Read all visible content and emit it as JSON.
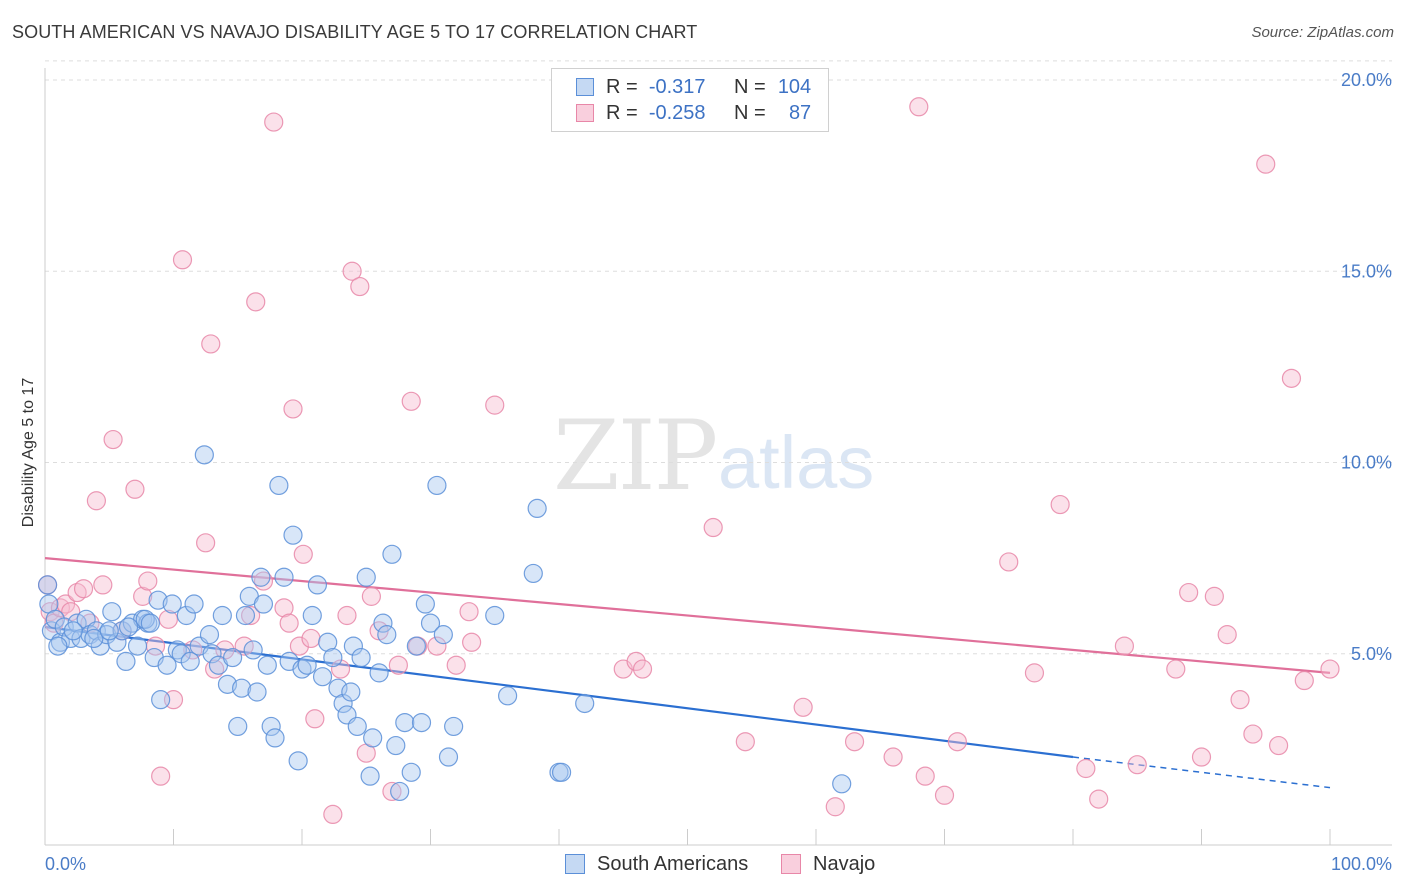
{
  "title": "SOUTH AMERICAN VS NAVAJO DISABILITY AGE 5 TO 17 CORRELATION CHART",
  "source": "Source: ZipAtlas.com",
  "watermark": {
    "zip": "ZIP",
    "atlas": "atlas"
  },
  "legend": {
    "rows": [
      {
        "r_label": "R =",
        "r_value": "-0.317",
        "n_label": "N =",
        "n_value": "104"
      },
      {
        "r_label": "R =",
        "r_value": "-0.258",
        "n_label": "N =",
        "n_value": "87"
      }
    ]
  },
  "bottom_legend": [
    "South Americans",
    "Navajo"
  ],
  "colors": {
    "south_americans_fill": "#a9c8f0",
    "south_americans_stroke": "#5b8fd8",
    "south_americans_line": "#2b6fd1",
    "navajo_fill": "#f7bcd0",
    "navajo_stroke": "#e887a8",
    "navajo_line": "#e0709a",
    "tick_label": "#4a7cc7",
    "grid": "#dddddd"
  },
  "chart_data": {
    "type": "scatter",
    "title": "SOUTH AMERICAN VS NAVAJO DISABILITY AGE 5 TO 17 CORRELATION CHART",
    "xlabel": "",
    "ylabel": "Disability Age 5 to 17",
    "xlim": [
      0,
      100
    ],
    "ylim": [
      0,
      20.5
    ],
    "x_tick_labels": [
      "0.0%",
      "100.0%"
    ],
    "y_ticks": [
      5,
      10,
      15,
      20
    ],
    "y_tick_labels": [
      "5.0%",
      "10.0%",
      "15.0%",
      "20.0%"
    ],
    "grid": true,
    "legend_position": "top-center",
    "series": [
      {
        "name": "South Americans",
        "r": -0.317,
        "n": 104,
        "trend": {
          "x0": 0,
          "y0": 5.7,
          "x1": 80,
          "y1": 2.3,
          "dashed_to_x": 100,
          "dashed_to_y": 1.5
        },
        "points": [
          [
            0.3,
            6.3
          ],
          [
            0.5,
            5.6
          ],
          [
            0.8,
            5.9
          ],
          [
            1.2,
            5.3
          ],
          [
            1.5,
            5.7
          ],
          [
            2.0,
            5.4
          ],
          [
            2.5,
            5.8
          ],
          [
            2.8,
            5.4
          ],
          [
            3.2,
            5.9
          ],
          [
            3.5,
            5.5
          ],
          [
            4.0,
            5.6
          ],
          [
            4.3,
            5.2
          ],
          [
            4.8,
            5.5
          ],
          [
            5.2,
            6.1
          ],
          [
            5.6,
            5.3
          ],
          [
            6.0,
            5.6
          ],
          [
            6.3,
            4.8
          ],
          [
            6.8,
            5.8
          ],
          [
            7.2,
            5.2
          ],
          [
            7.6,
            5.9
          ],
          [
            8.0,
            5.8
          ],
          [
            8.5,
            4.9
          ],
          [
            8.8,
            6.4
          ],
          [
            9.0,
            3.8
          ],
          [
            9.5,
            4.7
          ],
          [
            9.9,
            6.3
          ],
          [
            10.3,
            5.1
          ],
          [
            10.6,
            5.0
          ],
          [
            11.0,
            6.0
          ],
          [
            11.3,
            4.8
          ],
          [
            11.6,
            6.3
          ],
          [
            12.0,
            5.2
          ],
          [
            12.4,
            10.2
          ],
          [
            12.8,
            5.5
          ],
          [
            13.0,
            5.0
          ],
          [
            13.5,
            4.7
          ],
          [
            13.8,
            6.0
          ],
          [
            14.2,
            4.2
          ],
          [
            14.6,
            4.9
          ],
          [
            15.0,
            3.1
          ],
          [
            15.3,
            4.1
          ],
          [
            15.6,
            6.0
          ],
          [
            15.9,
            6.5
          ],
          [
            16.2,
            5.1
          ],
          [
            16.5,
            4.0
          ],
          [
            16.8,
            7.0
          ],
          [
            17.0,
            6.3
          ],
          [
            17.3,
            4.7
          ],
          [
            17.6,
            3.1
          ],
          [
            17.9,
            2.8
          ],
          [
            18.2,
            9.4
          ],
          [
            18.6,
            7.0
          ],
          [
            19.0,
            4.8
          ],
          [
            19.3,
            8.1
          ],
          [
            19.7,
            2.2
          ],
          [
            20.0,
            4.6
          ],
          [
            20.4,
            4.7
          ],
          [
            20.8,
            6.0
          ],
          [
            21.2,
            6.8
          ],
          [
            21.6,
            4.4
          ],
          [
            22.0,
            5.3
          ],
          [
            22.4,
            4.9
          ],
          [
            22.8,
            4.1
          ],
          [
            23.2,
            3.7
          ],
          [
            23.5,
            3.4
          ],
          [
            23.8,
            4.0
          ],
          [
            24.0,
            5.2
          ],
          [
            24.3,
            3.1
          ],
          [
            24.6,
            4.9
          ],
          [
            25.0,
            7.0
          ],
          [
            25.3,
            1.8
          ],
          [
            25.5,
            2.8
          ],
          [
            26.0,
            4.5
          ],
          [
            26.3,
            5.8
          ],
          [
            26.6,
            5.5
          ],
          [
            27.0,
            7.6
          ],
          [
            27.3,
            2.6
          ],
          [
            27.6,
            1.4
          ],
          [
            28.0,
            3.2
          ],
          [
            28.5,
            1.9
          ],
          [
            28.9,
            5.2
          ],
          [
            29.3,
            3.2
          ],
          [
            29.6,
            6.3
          ],
          [
            30.0,
            5.8
          ],
          [
            30.5,
            9.4
          ],
          [
            31.0,
            5.5
          ],
          [
            31.4,
            2.3
          ],
          [
            31.8,
            3.1
          ],
          [
            35.0,
            6.0
          ],
          [
            36.0,
            3.9
          ],
          [
            38.0,
            7.1
          ],
          [
            38.3,
            8.8
          ],
          [
            40.0,
            1.9
          ],
          [
            40.2,
            1.9
          ],
          [
            42.0,
            3.7
          ],
          [
            62.0,
            1.6
          ],
          [
            0.2,
            6.8
          ],
          [
            1.0,
            5.2
          ],
          [
            2.2,
            5.6
          ],
          [
            3.8,
            5.4
          ],
          [
            5.0,
            5.6
          ],
          [
            6.5,
            5.7
          ],
          [
            7.8,
            5.9
          ],
          [
            8.2,
            5.8
          ]
        ]
      },
      {
        "name": "Navajo",
        "r": -0.258,
        "n": 87,
        "trend": {
          "x0": 0,
          "y0": 7.5,
          "x1": 100,
          "y1": 4.5
        },
        "points": [
          [
            0.2,
            6.8
          ],
          [
            0.4,
            6.1
          ],
          [
            0.7,
            5.8
          ],
          [
            1.2,
            6.2
          ],
          [
            1.6,
            6.3
          ],
          [
            2.0,
            6.1
          ],
          [
            2.5,
            6.6
          ],
          [
            3.0,
            6.7
          ],
          [
            3.5,
            5.8
          ],
          [
            4.0,
            9.0
          ],
          [
            4.5,
            6.8
          ],
          [
            5.3,
            10.6
          ],
          [
            6.0,
            5.6
          ],
          [
            7.0,
            9.3
          ],
          [
            7.6,
            6.5
          ],
          [
            8.0,
            6.9
          ],
          [
            8.6,
            5.2
          ],
          [
            9.0,
            1.8
          ],
          [
            9.6,
            5.9
          ],
          [
            10.0,
            3.8
          ],
          [
            10.7,
            15.3
          ],
          [
            11.5,
            5.1
          ],
          [
            12.5,
            7.9
          ],
          [
            12.9,
            13.1
          ],
          [
            13.2,
            4.6
          ],
          [
            14.0,
            5.1
          ],
          [
            15.5,
            5.2
          ],
          [
            16.0,
            6.0
          ],
          [
            16.4,
            14.2
          ],
          [
            17.0,
            6.9
          ],
          [
            17.8,
            18.9
          ],
          [
            18.6,
            6.2
          ],
          [
            19.0,
            5.8
          ],
          [
            19.3,
            11.4
          ],
          [
            19.8,
            5.2
          ],
          [
            20.1,
            7.6
          ],
          [
            20.7,
            5.4
          ],
          [
            21.0,
            3.3
          ],
          [
            22.4,
            0.8
          ],
          [
            23.0,
            4.6
          ],
          [
            23.5,
            6.0
          ],
          [
            23.9,
            15.0
          ],
          [
            24.5,
            14.6
          ],
          [
            25.0,
            2.4
          ],
          [
            25.4,
            6.5
          ],
          [
            26.0,
            5.6
          ],
          [
            27.0,
            1.4
          ],
          [
            27.5,
            4.7
          ],
          [
            28.5,
            11.6
          ],
          [
            29.0,
            5.2
          ],
          [
            30.5,
            5.2
          ],
          [
            32.0,
            4.7
          ],
          [
            33.0,
            6.1
          ],
          [
            33.2,
            5.3
          ],
          [
            35.0,
            11.5
          ],
          [
            45.0,
            4.6
          ],
          [
            46.0,
            4.8
          ],
          [
            46.5,
            4.6
          ],
          [
            52.0,
            8.3
          ],
          [
            54.5,
            2.7
          ],
          [
            59.0,
            3.6
          ],
          [
            61.5,
            1.0
          ],
          [
            63.0,
            2.7
          ],
          [
            66.0,
            2.3
          ],
          [
            68.0,
            19.3
          ],
          [
            68.5,
            1.8
          ],
          [
            70.0,
            1.3
          ],
          [
            71.0,
            2.7
          ],
          [
            75.0,
            7.4
          ],
          [
            77.0,
            4.5
          ],
          [
            79.0,
            8.9
          ],
          [
            81.0,
            2.0
          ],
          [
            82.0,
            1.2
          ],
          [
            84.0,
            5.2
          ],
          [
            85.0,
            2.1
          ],
          [
            88.0,
            4.6
          ],
          [
            89.0,
            6.6
          ],
          [
            90.0,
            2.3
          ],
          [
            91.0,
            6.5
          ],
          [
            92.0,
            5.5
          ],
          [
            93.0,
            3.8
          ],
          [
            94.0,
            2.9
          ],
          [
            95.0,
            17.8
          ],
          [
            96.0,
            2.6
          ],
          [
            97.0,
            12.2
          ],
          [
            98.0,
            4.3
          ],
          [
            100.0,
            4.6
          ]
        ]
      }
    ]
  }
}
